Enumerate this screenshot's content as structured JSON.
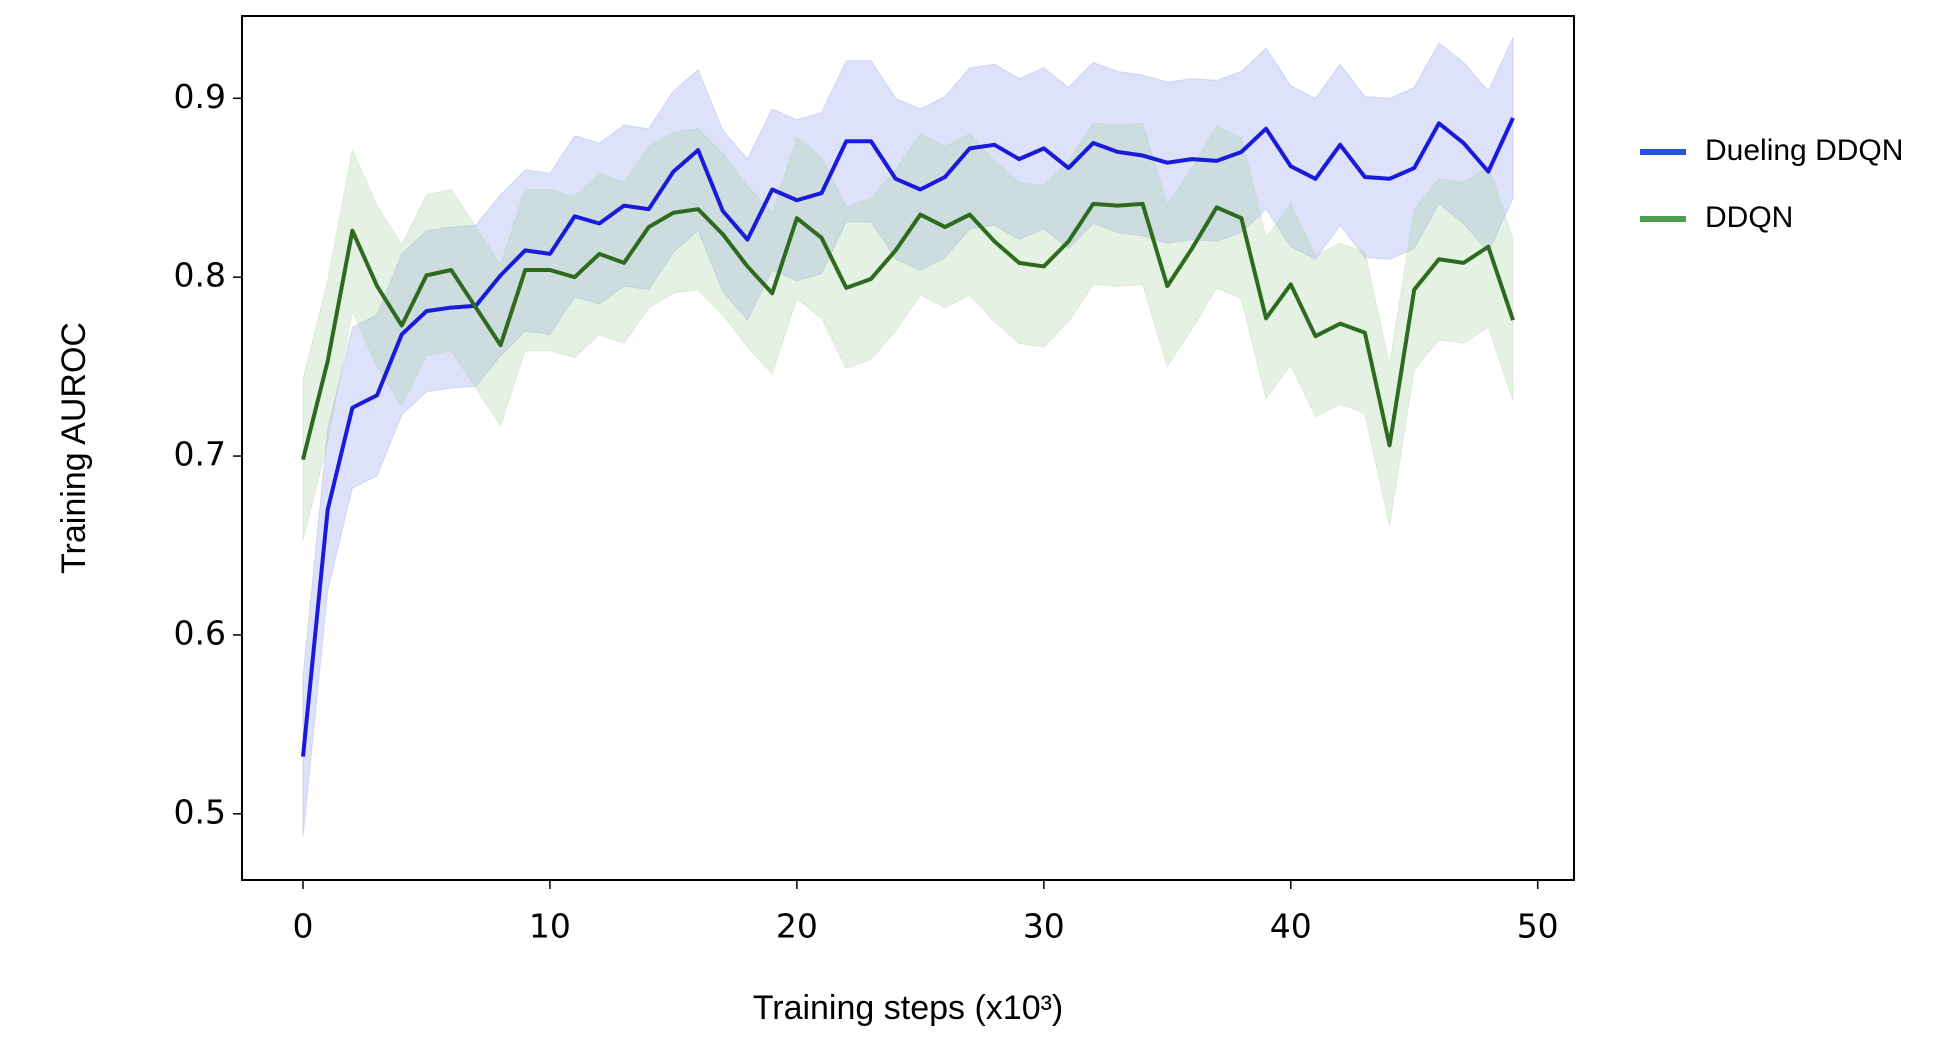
{
  "chart_data": {
    "type": "line",
    "x_label": "Training steps (x10³)",
    "y_label": "Training AUROC",
    "x": [
      0,
      1,
      2,
      3,
      4,
      5,
      6,
      7,
      8,
      9,
      10,
      11,
      12,
      13,
      14,
      15,
      16,
      17,
      18,
      19,
      20,
      21,
      22,
      23,
      24,
      25,
      26,
      27,
      28,
      29,
      30,
      31,
      32,
      33,
      34,
      35,
      36,
      37,
      38,
      39,
      40,
      41,
      42,
      43,
      44,
      45,
      46,
      47,
      48,
      49
    ],
    "series": [
      {
        "name": "Dueling DDQN",
        "color": "#1a1adb",
        "legend_color": "#2451e0",
        "band_color": "#8f9cf0",
        "values": [
          0.532,
          0.67,
          0.727,
          0.734,
          0.768,
          0.781,
          0.783,
          0.784,
          0.801,
          0.815,
          0.813,
          0.834,
          0.83,
          0.84,
          0.838,
          0.859,
          0.871,
          0.837,
          0.821,
          0.849,
          0.843,
          0.847,
          0.876,
          0.876,
          0.855,
          0.849,
          0.856,
          0.872,
          0.874,
          0.866,
          0.872,
          0.861,
          0.875,
          0.87,
          0.868,
          0.864,
          0.866,
          0.865,
          0.87,
          0.883,
          0.862,
          0.855,
          0.874,
          0.856,
          0.855,
          0.861,
          0.886,
          0.875,
          0.859,
          0.889
        ],
        "upper": [
          0.577,
          0.715,
          0.772,
          0.779,
          0.813,
          0.826,
          0.828,
          0.829,
          0.846,
          0.86,
          0.858,
          0.879,
          0.875,
          0.885,
          0.883,
          0.904,
          0.916,
          0.882,
          0.866,
          0.894,
          0.888,
          0.892,
          0.921,
          0.921,
          0.9,
          0.894,
          0.901,
          0.917,
          0.919,
          0.911,
          0.917,
          0.906,
          0.92,
          0.915,
          0.913,
          0.909,
          0.911,
          0.91,
          0.915,
          0.928,
          0.907,
          0.9,
          0.919,
          0.901,
          0.9,
          0.906,
          0.931,
          0.92,
          0.904,
          0.934
        ],
        "lower": [
          0.487,
          0.625,
          0.682,
          0.689,
          0.723,
          0.736,
          0.738,
          0.739,
          0.756,
          0.77,
          0.768,
          0.789,
          0.785,
          0.795,
          0.793,
          0.814,
          0.826,
          0.792,
          0.776,
          0.804,
          0.798,
          0.802,
          0.831,
          0.831,
          0.81,
          0.804,
          0.811,
          0.827,
          0.829,
          0.821,
          0.827,
          0.816,
          0.83,
          0.825,
          0.823,
          0.819,
          0.821,
          0.82,
          0.825,
          0.838,
          0.817,
          0.81,
          0.829,
          0.811,
          0.81,
          0.816,
          0.841,
          0.83,
          0.814,
          0.844
        ]
      },
      {
        "name": "DDQN",
        "color": "#2e6b1e",
        "legend_color": "#4f9e4f",
        "band_color": "#a9cfa0",
        "values": [
          0.698,
          0.753,
          0.826,
          0.795,
          0.773,
          0.801,
          0.804,
          0.783,
          0.762,
          0.804,
          0.804,
          0.8,
          0.813,
          0.808,
          0.828,
          0.836,
          0.838,
          0.824,
          0.806,
          0.791,
          0.833,
          0.822,
          0.794,
          0.799,
          0.815,
          0.835,
          0.828,
          0.835,
          0.82,
          0.808,
          0.806,
          0.82,
          0.841,
          0.84,
          0.841,
          0.795,
          0.816,
          0.839,
          0.833,
          0.777,
          0.796,
          0.767,
          0.774,
          0.769,
          0.706,
          0.793,
          0.81,
          0.808,
          0.817,
          0.776
        ],
        "upper": [
          0.743,
          0.798,
          0.871,
          0.84,
          0.818,
          0.846,
          0.849,
          0.828,
          0.807,
          0.849,
          0.849,
          0.845,
          0.858,
          0.853,
          0.873,
          0.881,
          0.883,
          0.869,
          0.851,
          0.836,
          0.878,
          0.867,
          0.839,
          0.844,
          0.86,
          0.88,
          0.873,
          0.88,
          0.865,
          0.853,
          0.851,
          0.865,
          0.886,
          0.885,
          0.886,
          0.84,
          0.861,
          0.884,
          0.878,
          0.822,
          0.841,
          0.812,
          0.819,
          0.814,
          0.751,
          0.838,
          0.855,
          0.853,
          0.862,
          0.821
        ],
        "lower": [
          0.653,
          0.708,
          0.781,
          0.75,
          0.728,
          0.756,
          0.759,
          0.738,
          0.717,
          0.759,
          0.759,
          0.755,
          0.768,
          0.763,
          0.783,
          0.791,
          0.793,
          0.779,
          0.761,
          0.746,
          0.788,
          0.777,
          0.749,
          0.754,
          0.77,
          0.79,
          0.783,
          0.79,
          0.775,
          0.763,
          0.761,
          0.775,
          0.796,
          0.795,
          0.796,
          0.75,
          0.771,
          0.794,
          0.788,
          0.732,
          0.751,
          0.722,
          0.729,
          0.724,
          0.661,
          0.748,
          0.765,
          0.763,
          0.772,
          0.731
        ]
      }
    ],
    "xlim": [
      -2.47,
      51.47
    ],
    "ylim": [
      0.463,
      0.946
    ],
    "xticks": [
      0,
      10,
      20,
      30,
      40,
      50
    ],
    "yticks": [
      0.5,
      0.6,
      0.7,
      0.8,
      0.9
    ],
    "legend": "outside-right"
  }
}
